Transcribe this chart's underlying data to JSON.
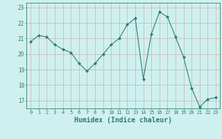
{
  "x": [
    0,
    1,
    2,
    3,
    4,
    5,
    6,
    7,
    8,
    9,
    10,
    11,
    12,
    13,
    14,
    15,
    16,
    17,
    18,
    19,
    20,
    21,
    22,
    23
  ],
  "y": [
    20.8,
    21.2,
    21.1,
    20.6,
    20.3,
    20.1,
    19.4,
    18.9,
    19.4,
    20.0,
    20.6,
    21.0,
    21.9,
    22.3,
    18.4,
    21.3,
    22.7,
    22.4,
    21.1,
    19.8,
    17.8,
    16.6,
    17.1,
    17.2
  ],
  "line_color": "#2e7d6e",
  "marker": "D",
  "marker_size": 2,
  "bg_color": "#cff0ee",
  "grid_color": "#c8a0a0",
  "axis_color": "#2e7d6e",
  "xlabel": "Humidex (Indice chaleur)",
  "xlabel_fontsize": 7,
  "ylabel_ticks": [
    17,
    18,
    19,
    20,
    21,
    22,
    23
  ],
  "xlim": [
    -0.5,
    23.5
  ],
  "ylim": [
    16.5,
    23.3
  ],
  "tick_fontsize": 5,
  "lw": 0.8
}
